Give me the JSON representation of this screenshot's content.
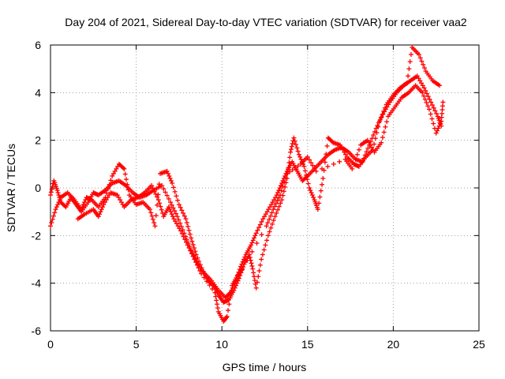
{
  "chart_data": {
    "type": "scatter",
    "title": "Day 204 of 2021, Sidereal Day-to-day VTEC variation (SDTVAR) for receiver vaa2",
    "xlabel": "GPS time / hours",
    "ylabel": "SDTVAR / TECUs",
    "xlim": [
      0,
      25
    ],
    "ylim": [
      -6,
      6
    ],
    "x_ticks": [
      0,
      5,
      10,
      15,
      20,
      25
    ],
    "y_ticks": [
      -6,
      -4,
      -2,
      0,
      2,
      4,
      6
    ],
    "grid": true,
    "marker": "+",
    "series": [
      {
        "color": "#ff0000",
        "tracks": [
          [
            [
              0.0,
              -0.3
            ],
            [
              0.2,
              0.3
            ],
            [
              0.4,
              -0.1
            ],
            [
              0.6,
              -0.6
            ],
            [
              0.9,
              -0.8
            ],
            [
              1.2,
              -0.4
            ],
            [
              1.5,
              -0.7
            ],
            [
              1.8,
              -1.0
            ],
            [
              2.2,
              -0.6
            ],
            [
              2.5,
              -0.2
            ],
            [
              2.8,
              -0.3
            ],
            [
              3.2,
              -0.1
            ],
            [
              3.6,
              0.2
            ],
            [
              4.0,
              0.3
            ],
            [
              4.4,
              0.1
            ],
            [
              4.8,
              -0.2
            ],
            [
              5.2,
              -0.4
            ],
            [
              5.6,
              -0.3
            ],
            [
              6.0,
              -0.1
            ],
            [
              6.5,
              0.1
            ],
            [
              7.0,
              -0.6
            ],
            [
              7.4,
              -1.2
            ],
            [
              7.8,
              -1.9
            ],
            [
              8.2,
              -2.6
            ],
            [
              8.6,
              -3.2
            ],
            [
              9.0,
              -3.6
            ],
            [
              9.4,
              -3.9
            ],
            [
              9.8,
              -4.3
            ],
            [
              10.2,
              -4.6
            ],
            [
              10.5,
              -4.4
            ],
            [
              10.8,
              -3.9
            ],
            [
              11.1,
              -3.3
            ],
            [
              11.4,
              -2.8
            ],
            [
              11.7,
              -2.4
            ],
            [
              12.0,
              -1.9
            ],
            [
              12.4,
              -1.3
            ],
            [
              12.8,
              -0.8
            ],
            [
              13.2,
              -0.3
            ],
            [
              13.5,
              0.2
            ],
            [
              13.8,
              0.7
            ],
            [
              14.1,
              1.1
            ],
            [
              14.4,
              0.7
            ],
            [
              14.7,
              0.3
            ],
            [
              15.0,
              0.5
            ],
            [
              15.4,
              0.8
            ],
            [
              15.8,
              1.1
            ],
            [
              16.2,
              1.4
            ],
            [
              16.6,
              1.6
            ],
            [
              17.0,
              1.7
            ],
            [
              17.4,
              1.5
            ],
            [
              17.8,
              1.2
            ],
            [
              18.2,
              1.1
            ],
            [
              18.6,
              1.8
            ],
            [
              19.0,
              2.5
            ],
            [
              19.4,
              3.1
            ],
            [
              19.8,
              3.6
            ],
            [
              20.2,
              4.0
            ],
            [
              20.6,
              4.3
            ],
            [
              21.0,
              4.5
            ],
            [
              21.4,
              4.7
            ],
            [
              21.8,
              4.2
            ],
            [
              22.2,
              3.6
            ],
            [
              22.6,
              3.0
            ],
            [
              22.8,
              2.6
            ]
          ],
          [
            [
              0.0,
              -1.6
            ],
            [
              0.3,
              -0.9
            ],
            [
              0.6,
              -0.4
            ],
            [
              1.0,
              -0.2
            ],
            [
              1.4,
              -0.5
            ],
            [
              1.8,
              -0.9
            ],
            [
              2.1,
              -0.4
            ],
            [
              2.4,
              -0.5
            ],
            [
              2.8,
              -0.8
            ],
            [
              3.2,
              -0.4
            ],
            [
              3.6,
              0.5
            ],
            [
              4.0,
              1.0
            ],
            [
              4.3,
              0.8
            ],
            [
              4.6,
              -0.3
            ],
            [
              5.0,
              -0.7
            ],
            [
              5.4,
              -0.6
            ],
            [
              5.8,
              -0.9
            ],
            [
              6.1,
              -1.6
            ],
            [
              6.4,
              0.6
            ],
            [
              6.8,
              0.7
            ],
            [
              7.1,
              0.2
            ],
            [
              7.5,
              -0.7
            ],
            [
              7.9,
              -1.3
            ],
            [
              8.2,
              -2.1
            ],
            [
              8.5,
              -2.8
            ],
            [
              8.9,
              -3.5
            ],
            [
              9.2,
              -3.9
            ],
            [
              9.5,
              -4.1
            ],
            [
              9.8,
              -4.5
            ],
            [
              10.1,
              -4.8
            ],
            [
              10.4,
              -4.7
            ],
            [
              10.7,
              -4.3
            ],
            [
              11.0,
              -3.8
            ],
            [
              11.3,
              -3.2
            ],
            [
              11.6,
              -2.8
            ],
            [
              11.8,
              -3.4
            ],
            [
              12.0,
              -4.2
            ],
            [
              12.3,
              -3.0
            ],
            [
              12.7,
              -2.0
            ],
            [
              13.1,
              -1.2
            ],
            [
              13.5,
              -0.5
            ],
            [
              13.8,
              0.4
            ],
            [
              14.0,
              1.5
            ],
            [
              14.2,
              2.1
            ],
            [
              14.5,
              1.4
            ],
            [
              14.8,
              0.9
            ],
            [
              15.1,
              0.0
            ],
            [
              15.4,
              -0.5
            ],
            [
              15.6,
              -0.9
            ],
            [
              15.9,
              0.4
            ],
            [
              16.2,
              2.1
            ],
            [
              16.5,
              1.9
            ],
            [
              16.9,
              1.8
            ],
            [
              17.3,
              1.3
            ],
            [
              17.7,
              1.0
            ],
            [
              18.0,
              0.9
            ],
            [
              18.4,
              1.3
            ],
            [
              18.8,
              1.6
            ],
            [
              19.2,
              2.8
            ],
            [
              19.6,
              3.5
            ],
            [
              20.0,
              3.9
            ],
            [
              20.4,
              4.2
            ],
            [
              20.8,
              4.4
            ],
            [
              21.1,
              5.9
            ],
            [
              21.5,
              5.6
            ],
            [
              21.9,
              4.9
            ],
            [
              22.3,
              4.5
            ],
            [
              22.7,
              4.3
            ]
          ],
          [
            [
              1.6,
              -1.3
            ],
            [
              2.0,
              -1.1
            ],
            [
              2.5,
              -0.9
            ],
            [
              2.8,
              -1.2
            ],
            [
              3.1,
              -0.7
            ],
            [
              3.5,
              -0.2
            ],
            [
              3.9,
              -0.3
            ],
            [
              4.3,
              -0.8
            ],
            [
              4.7,
              -0.5
            ],
            [
              5.1,
              -0.4
            ],
            [
              5.5,
              -0.2
            ],
            [
              5.9,
              0.1
            ],
            [
              6.3,
              -0.5
            ],
            [
              6.6,
              -1.2
            ],
            [
              6.9,
              -0.8
            ],
            [
              7.2,
              -1.3
            ],
            [
              7.6,
              -1.8
            ],
            [
              8.0,
              -2.4
            ],
            [
              8.4,
              -3.0
            ],
            [
              8.8,
              -3.6
            ],
            [
              9.6,
              -4.4
            ],
            [
              9.8,
              -5.2
            ],
            [
              10.1,
              -5.6
            ],
            [
              10.3,
              -5.4
            ],
            [
              10.6,
              -4.1
            ],
            [
              10.9,
              -3.7
            ],
            [
              11.2,
              -3.4
            ],
            [
              12.6,
              -1.6
            ],
            [
              13.0,
              -0.9
            ],
            [
              13.4,
              -0.3
            ],
            [
              13.8,
              0.6
            ],
            [
              14.6,
              1.0
            ],
            [
              15.0,
              1.3
            ],
            [
              15.5,
              0.7
            ],
            [
              17.2,
              1.2
            ],
            [
              17.6,
              0.8
            ],
            [
              18.1,
              1.8
            ],
            [
              18.5,
              2.0
            ],
            [
              18.9,
              1.5
            ],
            [
              19.3,
              1.9
            ],
            [
              19.7,
              3.0
            ],
            [
              20.1,
              3.4
            ],
            [
              20.5,
              3.8
            ],
            [
              20.9,
              4.0
            ],
            [
              21.3,
              4.3
            ],
            [
              21.7,
              4.0
            ],
            [
              22.1,
              3.3
            ],
            [
              22.5,
              2.3
            ],
            [
              22.8,
              2.8
            ],
            [
              22.9,
              3.6
            ]
          ]
        ]
      }
    ]
  }
}
